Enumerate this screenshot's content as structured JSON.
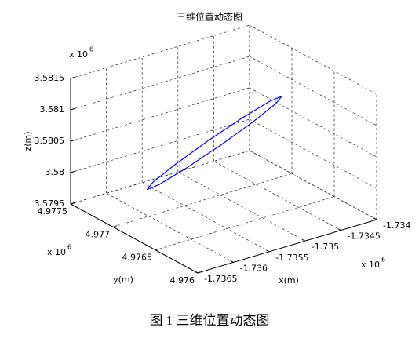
{
  "chart_data": {
    "type": "line3d",
    "title": "三维位置动态图",
    "xlabel": "x(m)",
    "ylabel": "y(m)",
    "zlabel": "z(m)",
    "multiplier": "x 10",
    "multiplier_exponent": "6",
    "xlim": [
      -1.7365,
      -1.734
    ],
    "ylim": [
      4.976,
      4.9775
    ],
    "zlim": [
      3.5795,
      3.5815
    ],
    "xticks": [
      -1.7365,
      -1.736,
      -1.7355,
      -1.735,
      -1.7345,
      -1.734
    ],
    "yticks": [
      4.976,
      4.9765,
      4.977,
      4.9775
    ],
    "zticks": [
      3.5795,
      3.58,
      3.5805,
      3.581,
      3.5815
    ],
    "grid": true,
    "series": [
      {
        "color": "#0000ff",
        "x": [
          -1.73435,
          -1.73442,
          -1.734653,
          -1.734985,
          -1.735328,
          -1.73559,
          -1.7357,
          -1.73563,
          -1.735397,
          -1.735065,
          -1.734722,
          -1.73446,
          -1.73435
        ],
        "y": [
          4.976825,
          4.976835,
          4.976903,
          4.97701,
          4.977128,
          4.977225,
          4.977275,
          4.977265,
          4.977197,
          4.97709,
          4.976972,
          4.976875,
          4.976825
        ],
        "z": [
          3.58098,
          3.580879,
          3.580623,
          3.58028,
          3.579943,
          3.579701,
          3.57962,
          3.579721,
          3.579977,
          3.58032,
          3.580657,
          3.580899,
          3.58098
        ]
      }
    ]
  },
  "caption": "图 1  三维位置动态图"
}
